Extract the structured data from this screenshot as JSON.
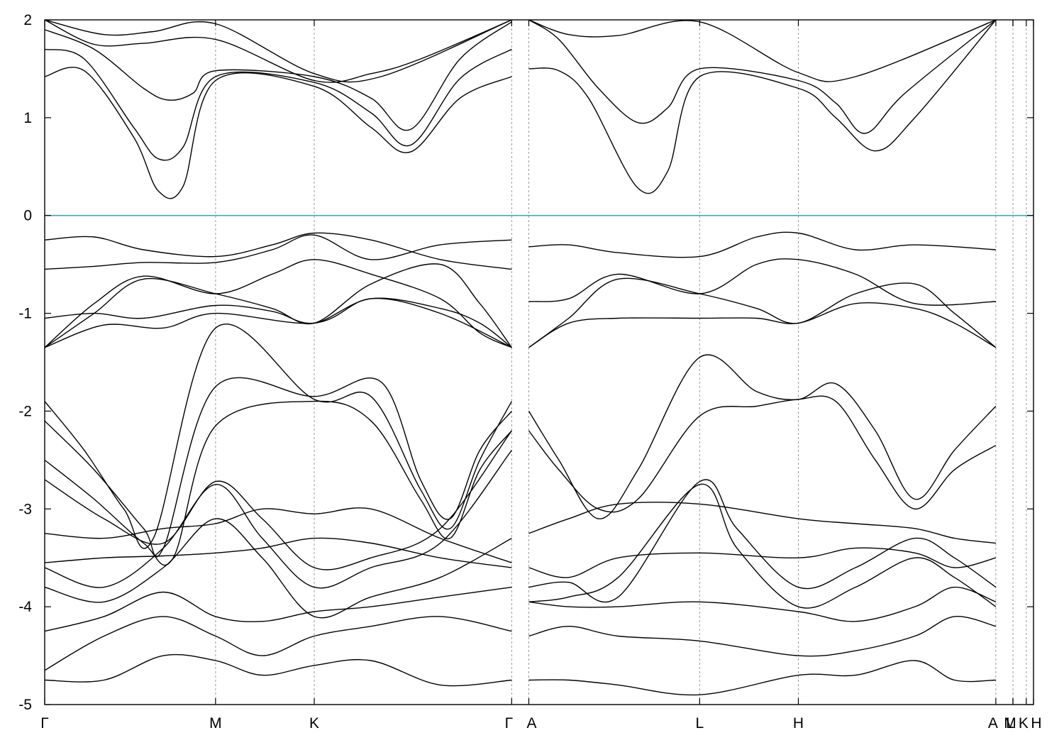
{
  "chart_data": {
    "type": "line",
    "title": "",
    "xlabel": "",
    "ylabel": "",
    "ylim": [
      -5,
      2
    ],
    "xlim": [
      0,
      1
    ],
    "yticks": [
      -5,
      -4,
      -3,
      -2,
      -1,
      0,
      1,
      2
    ],
    "ytick_labels": [
      "-5",
      "-4",
      "-3",
      "-2",
      "-1",
      "0",
      "1",
      "2"
    ],
    "kpoints": [
      {
        "label": "Γ",
        "x": 0.0
      },
      {
        "label": "M",
        "x": 0.1728
      },
      {
        "label": "K",
        "x": 0.2726
      },
      {
        "label": "Γ",
        "x": 0.4723
      },
      {
        "label": "A",
        "x": 0.4896
      },
      {
        "label": "L",
        "x": 0.6624
      },
      {
        "label": "H",
        "x": 0.7622
      },
      {
        "label": "A",
        "x": 0.9619
      },
      {
        "label": "L",
        "x": 0.9792
      },
      {
        "label": "M",
        "x": 0.9792
      },
      {
        "label": "K",
        "x": 0.9927
      },
      {
        "label": "H",
        "x": 1.0
      }
    ],
    "fermi_level": 0,
    "colors": {
      "bands": "#000000",
      "fermi": "#4aa3b5",
      "grid": "#9a9a9a"
    },
    "legend": "none",
    "grid": "vertical dashed at k-points",
    "series": [
      {
        "segment": "Γ-M-K-Γ",
        "x": [
          0,
          0.04,
          0.09,
          0.115,
          0.14,
          0.1728,
          0.2726,
          0.33,
          0.37,
          0.42,
          0.4723
        ],
        "y": [
          1.42,
          1.48,
          0.8,
          0.25,
          0.3,
          1.38,
          1.32,
          0.9,
          0.65,
          1.2,
          1.42
        ]
      },
      {
        "segment": "Γ-M-K-Γ",
        "x": [
          0,
          0.04,
          0.09,
          0.115,
          0.14,
          0.1728,
          0.2726,
          0.33,
          0.37,
          0.42,
          0.4723
        ],
        "y": [
          1.7,
          1.6,
          0.9,
          0.58,
          0.7,
          1.42,
          1.36,
          1.05,
          0.72,
          1.4,
          1.7
        ]
      },
      {
        "segment": "Γ-M-K-Γ",
        "x": [
          0,
          0.05,
          0.1,
          0.125,
          0.15,
          0.1728,
          0.2726,
          0.33,
          0.37,
          0.42,
          0.4723
        ],
        "y": [
          1.9,
          1.7,
          1.3,
          1.18,
          1.25,
          1.48,
          1.42,
          1.2,
          0.88,
          1.6,
          1.98
        ]
      },
      {
        "segment": "Γ-M-K-Γ",
        "x": [
          0,
          0.05,
          0.1,
          0.1728,
          0.2726,
          0.33,
          0.38,
          0.4723
        ],
        "y": [
          2.0,
          1.75,
          1.76,
          1.8,
          1.38,
          1.45,
          1.6,
          2.0
        ]
      },
      {
        "segment": "Γ-M-K-Γ",
        "x": [
          0,
          0.06,
          0.11,
          0.1728,
          0.2726,
          0.34,
          0.4723
        ],
        "y": [
          2.0,
          1.85,
          1.88,
          1.96,
          1.45,
          1.42,
          2.0
        ]
      },
      {
        "segment": "A-L-H-A",
        "x": [
          0.4896,
          0.52,
          0.55,
          0.6,
          0.63,
          0.6624,
          0.7622,
          0.8,
          0.84,
          0.88,
          0.9619
        ],
        "y": [
          1.5,
          1.48,
          1.2,
          0.28,
          0.45,
          1.42,
          1.3,
          1.0,
          0.66,
          1.0,
          2.0
        ]
      },
      {
        "segment": "A-L-H-A",
        "x": [
          0.4896,
          0.52,
          0.56,
          0.6,
          0.63,
          0.6624,
          0.7622,
          0.8,
          0.83,
          0.87,
          0.9619
        ],
        "y": [
          2.0,
          1.8,
          1.3,
          0.95,
          1.1,
          1.5,
          1.38,
          1.15,
          0.84,
          1.25,
          2.0
        ]
      },
      {
        "segment": "A-L-H-A",
        "x": [
          0.4896,
          0.53,
          0.58,
          0.6624,
          0.7622,
          0.82,
          0.9619
        ],
        "y": [
          2.0,
          1.85,
          1.84,
          1.98,
          1.46,
          1.42,
          2.0
        ]
      },
      {
        "segment": "Γ-M-K-Γ",
        "x": [
          0,
          0.05,
          0.1,
          0.1728,
          0.23,
          0.2726,
          0.33,
          0.4,
          0.4723
        ],
        "y": [
          -0.25,
          -0.22,
          -0.35,
          -0.42,
          -0.3,
          -0.18,
          -0.25,
          -0.45,
          -0.55
        ]
      },
      {
        "segment": "Γ-M-K-Γ",
        "x": [
          0,
          0.05,
          0.1,
          0.1728,
          0.23,
          0.2726,
          0.33,
          0.4,
          0.4723
        ],
        "y": [
          -0.55,
          -0.52,
          -0.48,
          -0.48,
          -0.35,
          -0.2,
          -0.45,
          -0.3,
          -0.25
        ]
      },
      {
        "segment": "Γ-M-K-Γ",
        "x": [
          0,
          0.05,
          0.1,
          0.1728,
          0.23,
          0.2726,
          0.33,
          0.4,
          0.44,
          0.4723
        ],
        "y": [
          -1.35,
          -0.9,
          -0.62,
          -0.8,
          -0.6,
          -0.45,
          -0.6,
          -0.85,
          -1.2,
          -1.35
        ]
      },
      {
        "segment": "Γ-M-K-Γ",
        "x": [
          0,
          0.05,
          0.1,
          0.1728,
          0.23,
          0.2726,
          0.33,
          0.4,
          0.44,
          0.4723
        ],
        "y": [
          -1.35,
          -1.0,
          -0.65,
          -0.8,
          -0.95,
          -1.1,
          -0.7,
          -0.5,
          -0.9,
          -1.35
        ]
      },
      {
        "segment": "Γ-M-K-Γ",
        "x": [
          0,
          0.05,
          0.1,
          0.1728,
          0.23,
          0.2726,
          0.33,
          0.4,
          0.44,
          0.4723
        ],
        "y": [
          -1.05,
          -1.0,
          -1.05,
          -0.92,
          -0.98,
          -1.1,
          -0.85,
          -0.95,
          -1.1,
          -1.35
        ]
      },
      {
        "segment": "Γ-M-K-Γ",
        "x": [
          0,
          0.06,
          0.12,
          0.1728,
          0.2726,
          0.33,
          0.4,
          0.4723
        ],
        "y": [
          -1.35,
          -1.12,
          -1.15,
          -1.0,
          -1.1,
          -0.85,
          -1.0,
          -1.35
        ]
      },
      {
        "segment": "A-L-H-A",
        "x": [
          0.4896,
          0.53,
          0.58,
          0.6624,
          0.72,
          0.7622,
          0.82,
          0.88,
          0.9619
        ],
        "y": [
          -0.32,
          -0.3,
          -0.38,
          -0.42,
          -0.22,
          -0.18,
          -0.35,
          -0.3,
          -0.35
        ]
      },
      {
        "segment": "A-L-H-A",
        "x": [
          0.4896,
          0.53,
          0.58,
          0.6624,
          0.72,
          0.7622,
          0.82,
          0.88,
          0.9619
        ],
        "y": [
          -0.88,
          -0.85,
          -0.6,
          -0.8,
          -0.5,
          -0.45,
          -0.6,
          -0.9,
          -0.88
        ]
      },
      {
        "segment": "A-L-H-A",
        "x": [
          0.4896,
          0.53,
          0.58,
          0.6624,
          0.72,
          0.7622,
          0.82,
          0.88,
          0.92,
          0.9619
        ],
        "y": [
          -1.35,
          -1.05,
          -0.65,
          -0.8,
          -0.95,
          -1.1,
          -0.8,
          -0.7,
          -1.0,
          -1.35
        ]
      },
      {
        "segment": "A-L-H-A",
        "x": [
          0.4896,
          0.53,
          0.58,
          0.6624,
          0.72,
          0.7622,
          0.82,
          0.88,
          0.92,
          0.9619
        ],
        "y": [
          -1.35,
          -1.1,
          -1.05,
          -1.05,
          -1.05,
          -1.1,
          -0.9,
          -0.95,
          -1.1,
          -1.35
        ]
      },
      {
        "segment": "Γ-M-K-Γ",
        "x": [
          0,
          0.04,
          0.08,
          0.11,
          0.1728,
          0.2726,
          0.33,
          0.38,
          0.41,
          0.44,
          0.4723
        ],
        "y": [
          -1.9,
          -2.4,
          -3.0,
          -3.3,
          -1.15,
          -1.88,
          -1.85,
          -2.8,
          -3.2,
          -2.5,
          -1.9
        ]
      },
      {
        "segment": "Γ-M-K-Γ",
        "x": [
          0,
          0.05,
          0.1,
          0.12,
          0.1728,
          0.2726,
          0.34,
          0.38,
          0.41,
          0.44,
          0.4723
        ],
        "y": [
          -2.1,
          -2.6,
          -3.2,
          -3.4,
          -1.75,
          -1.85,
          -1.7,
          -2.7,
          -3.1,
          -2.4,
          -2.0
        ]
      },
      {
        "segment": "Γ-M-K-Γ",
        "x": [
          0,
          0.05,
          0.1,
          0.13,
          0.1728,
          0.2726,
          0.33,
          0.38,
          0.41,
          0.44,
          0.4723
        ],
        "y": [
          -2.5,
          -2.9,
          -3.35,
          -3.5,
          -2.15,
          -1.9,
          -2.1,
          -2.9,
          -3.3,
          -2.6,
          -2.2
        ]
      },
      {
        "segment": "A-L-H-A",
        "x": [
          0.4896,
          0.52,
          0.56,
          0.6,
          0.6624,
          0.72,
          0.7622,
          0.8,
          0.84,
          0.88,
          0.92,
          0.9619
        ],
        "y": [
          -2.0,
          -2.5,
          -3.1,
          -2.6,
          -1.45,
          -1.8,
          -1.88,
          -1.72,
          -2.2,
          -2.9,
          -2.4,
          -1.95
        ]
      },
      {
        "segment": "A-L-H-A",
        "x": [
          0.4896,
          0.52,
          0.56,
          0.6,
          0.6624,
          0.72,
          0.7622,
          0.8,
          0.84,
          0.88,
          0.92,
          0.9619
        ],
        "y": [
          -2.2,
          -2.6,
          -3.0,
          -2.9,
          -2.05,
          -1.95,
          -1.88,
          -1.9,
          -2.5,
          -3.0,
          -2.6,
          -2.35
        ]
      },
      {
        "segment": "Γ-M-K-Γ",
        "x": [
          0,
          0.06,
          0.12,
          0.1728,
          0.22,
          0.2726,
          0.33,
          0.4,
          0.4723
        ],
        "y": [
          -2.7,
          -3.1,
          -3.35,
          -2.72,
          -3.1,
          -3.6,
          -3.5,
          -3.2,
          -2.2
        ]
      },
      {
        "segment": "Γ-M-K-Γ",
        "x": [
          0,
          0.06,
          0.12,
          0.1728,
          0.22,
          0.2726,
          0.33,
          0.4,
          0.4723
        ],
        "y": [
          -3.6,
          -3.8,
          -3.4,
          -2.75,
          -3.3,
          -3.8,
          -3.6,
          -3.35,
          -2.4
        ]
      },
      {
        "segment": "Γ-M-K-Γ",
        "x": [
          0,
          0.06,
          0.12,
          0.1728,
          0.22,
          0.2726,
          0.33,
          0.4,
          0.4723
        ],
        "y": [
          -3.8,
          -3.95,
          -3.6,
          -3.1,
          -3.5,
          -4.1,
          -3.9,
          -3.7,
          -3.3
        ]
      },
      {
        "segment": "Γ-M-K-Γ",
        "x": [
          0,
          0.06,
          0.12,
          0.1728,
          0.22,
          0.2726,
          0.33,
          0.4,
          0.4723
        ],
        "y": [
          -3.25,
          -3.3,
          -3.2,
          -3.15,
          -3.0,
          -3.05,
          -3.0,
          -3.3,
          -3.55
        ]
      },
      {
        "segment": "Γ-M-K-Γ",
        "x": [
          0,
          0.06,
          0.12,
          0.1728,
          0.22,
          0.2726,
          0.33,
          0.4,
          0.4723
        ],
        "y": [
          -3.55,
          -3.5,
          -3.48,
          -3.45,
          -3.4,
          -3.3,
          -3.35,
          -3.5,
          -3.6
        ]
      },
      {
        "segment": "Γ-M-K-Γ",
        "x": [
          0,
          0.06,
          0.12,
          0.1728,
          0.22,
          0.2726,
          0.33,
          0.4,
          0.4723
        ],
        "y": [
          -4.25,
          -4.1,
          -3.85,
          -4.1,
          -4.15,
          -4.05,
          -4.0,
          -3.9,
          -3.8
        ]
      },
      {
        "segment": "Γ-M-K-Γ",
        "x": [
          0,
          0.06,
          0.12,
          0.1728,
          0.22,
          0.2726,
          0.33,
          0.4,
          0.4723
        ],
        "y": [
          -4.65,
          -4.3,
          -4.1,
          -4.3,
          -4.5,
          -4.3,
          -4.2,
          -4.1,
          -4.25
        ]
      },
      {
        "segment": "Γ-M-K-Γ",
        "x": [
          0,
          0.06,
          0.12,
          0.1728,
          0.22,
          0.2726,
          0.33,
          0.4,
          0.4723
        ],
        "y": [
          -4.75,
          -4.75,
          -4.5,
          -4.55,
          -4.7,
          -4.6,
          -4.55,
          -4.8,
          -4.75
        ]
      },
      {
        "segment": "A-L-H-A",
        "x": [
          0.4896,
          0.53,
          0.58,
          0.6624,
          0.7622,
          0.82,
          0.88,
          0.92,
          0.9619
        ],
        "y": [
          -3.6,
          -3.7,
          -3.5,
          -3.45,
          -3.5,
          -3.4,
          -3.45,
          -3.6,
          -3.5
        ]
      },
      {
        "segment": "A-L-H-A",
        "x": [
          0.4896,
          0.53,
          0.58,
          0.6624,
          0.7,
          0.7622,
          0.82,
          0.88,
          0.92,
          0.9619
        ],
        "y": [
          -3.8,
          -3.75,
          -3.9,
          -2.72,
          -3.2,
          -3.8,
          -3.6,
          -3.3,
          -3.5,
          -3.8
        ]
      },
      {
        "segment": "A-L-H-A",
        "x": [
          0.4896,
          0.53,
          0.58,
          0.6624,
          0.7,
          0.7622,
          0.82,
          0.88,
          0.92,
          0.9619
        ],
        "y": [
          -3.95,
          -3.9,
          -3.7,
          -2.75,
          -3.4,
          -4.0,
          -3.8,
          -3.5,
          -3.7,
          -4.0
        ]
      },
      {
        "segment": "A-L-H-A",
        "x": [
          0.4896,
          0.53,
          0.58,
          0.6624,
          0.7622,
          0.82,
          0.88,
          0.92,
          0.9619
        ],
        "y": [
          -3.25,
          -3.1,
          -2.95,
          -2.95,
          -3.1,
          -3.15,
          -3.2,
          -3.3,
          -3.35
        ]
      },
      {
        "segment": "A-L-H-A",
        "x": [
          0.4896,
          0.53,
          0.58,
          0.6624,
          0.7622,
          0.82,
          0.88,
          0.92,
          0.9619
        ],
        "y": [
          -4.3,
          -4.2,
          -4.3,
          -4.35,
          -4.5,
          -4.45,
          -4.3,
          -4.1,
          -4.2
        ]
      },
      {
        "segment": "A-L-H-A",
        "x": [
          0.4896,
          0.53,
          0.58,
          0.6624,
          0.7622,
          0.82,
          0.88,
          0.92,
          0.9619
        ],
        "y": [
          -4.75,
          -4.75,
          -4.8,
          -4.9,
          -4.7,
          -4.7,
          -4.55,
          -4.75,
          -4.75
        ]
      },
      {
        "segment": "A-L-H-A",
        "x": [
          0.4896,
          0.53,
          0.58,
          0.6624,
          0.7622,
          0.82,
          0.88,
          0.92,
          0.9619
        ],
        "y": [
          -3.95,
          -4.0,
          -4.0,
          -3.95,
          -4.05,
          -4.15,
          -4.0,
          -3.8,
          -3.95
        ]
      }
    ]
  }
}
